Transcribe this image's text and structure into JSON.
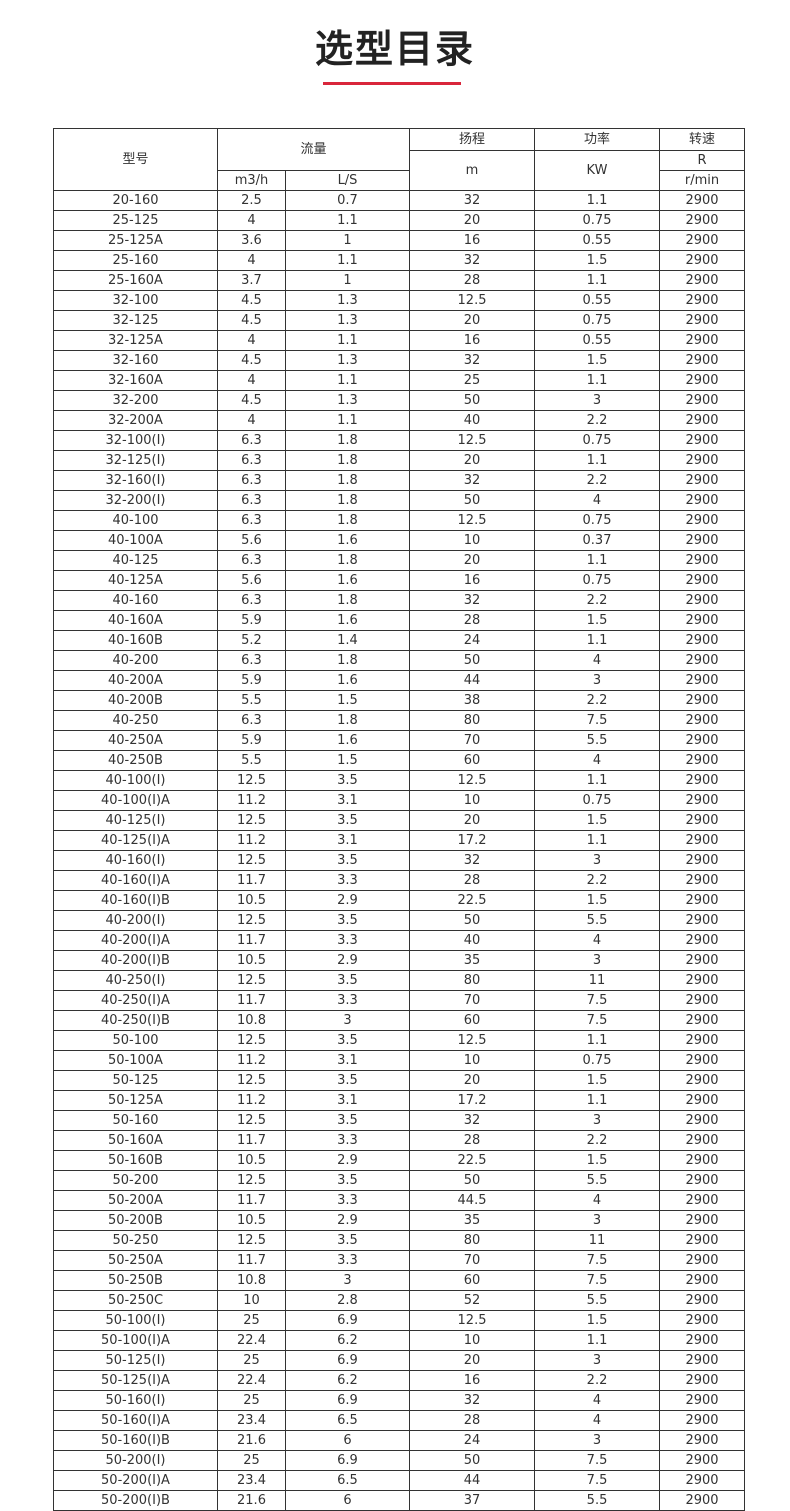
{
  "header": {
    "title": "选型目录"
  },
  "table": {
    "headers": {
      "model": "型号",
      "flow": "流量",
      "head": "扬程",
      "power": "功率",
      "speed": "转速",
      "head_unit": "m",
      "power_unit": "KW",
      "speed_unit_top": "R",
      "flow_unit_1": "m3/h",
      "flow_unit_2": "L/S",
      "speed_unit": "r/min"
    },
    "rows": [
      [
        "20-160",
        "2.5",
        "0.7",
        "32",
        "1.1",
        "2900"
      ],
      [
        "25-125",
        "4",
        "1.1",
        "20",
        "0.75",
        "2900"
      ],
      [
        "25-125A",
        "3.6",
        "1",
        "16",
        "0.55",
        "2900"
      ],
      [
        "25-160",
        "4",
        "1.1",
        "32",
        "1.5",
        "2900"
      ],
      [
        "25-160A",
        "3.7",
        "1",
        "28",
        "1.1",
        "2900"
      ],
      [
        "32-100",
        "4.5",
        "1.3",
        "12.5",
        "0.55",
        "2900"
      ],
      [
        "32-125",
        "4.5",
        "1.3",
        "20",
        "0.75",
        "2900"
      ],
      [
        "32-125A",
        "4",
        "1.1",
        "16",
        "0.55",
        "2900"
      ],
      [
        "32-160",
        "4.5",
        "1.3",
        "32",
        "1.5",
        "2900"
      ],
      [
        "32-160A",
        "4",
        "1.1",
        "25",
        "1.1",
        "2900"
      ],
      [
        "32-200",
        "4.5",
        "1.3",
        "50",
        "3",
        "2900"
      ],
      [
        "32-200A",
        "4",
        "1.1",
        "40",
        "2.2",
        "2900"
      ],
      [
        "32-100(I)",
        "6.3",
        "1.8",
        "12.5",
        "0.75",
        "2900"
      ],
      [
        "32-125(I)",
        "6.3",
        "1.8",
        "20",
        "1.1",
        "2900"
      ],
      [
        "32-160(I)",
        "6.3",
        "1.8",
        "32",
        "2.2",
        "2900"
      ],
      [
        "32-200(I)",
        "6.3",
        "1.8",
        "50",
        "4",
        "2900"
      ],
      [
        "40-100",
        "6.3",
        "1.8",
        "12.5",
        "0.75",
        "2900"
      ],
      [
        "40-100A",
        "5.6",
        "1.6",
        "10",
        "0.37",
        "2900"
      ],
      [
        "40-125",
        "6.3",
        "1.8",
        "20",
        "1.1",
        "2900"
      ],
      [
        "40-125A",
        "5.6",
        "1.6",
        "16",
        "0.75",
        "2900"
      ],
      [
        "40-160",
        "6.3",
        "1.8",
        "32",
        "2.2",
        "2900"
      ],
      [
        "40-160A",
        "5.9",
        "1.6",
        "28",
        "1.5",
        "2900"
      ],
      [
        "40-160B",
        "5.2",
        "1.4",
        "24",
        "1.1",
        "2900"
      ],
      [
        "40-200",
        "6.3",
        "1.8",
        "50",
        "4",
        "2900"
      ],
      [
        "40-200A",
        "5.9",
        "1.6",
        "44",
        "3",
        "2900"
      ],
      [
        "40-200B",
        "5.5",
        "1.5",
        "38",
        "2.2",
        "2900"
      ],
      [
        "40-250",
        "6.3",
        "1.8",
        "80",
        "7.5",
        "2900"
      ],
      [
        "40-250A",
        "5.9",
        "1.6",
        "70",
        "5.5",
        "2900"
      ],
      [
        "40-250B",
        "5.5",
        "1.5",
        "60",
        "4",
        "2900"
      ],
      [
        "40-100(I)",
        "12.5",
        "3.5",
        "12.5",
        "1.1",
        "2900"
      ],
      [
        "40-100(I)A",
        "11.2",
        "3.1",
        "10",
        "0.75",
        "2900"
      ],
      [
        "40-125(I)",
        "12.5",
        "3.5",
        "20",
        "1.5",
        "2900"
      ],
      [
        "40-125(I)A",
        "11.2",
        "3.1",
        "17.2",
        "1.1",
        "2900"
      ],
      [
        "40-160(I)",
        "12.5",
        "3.5",
        "32",
        "3",
        "2900"
      ],
      [
        "40-160(I)A",
        "11.7",
        "3.3",
        "28",
        "2.2",
        "2900"
      ],
      [
        "40-160(I)B",
        "10.5",
        "2.9",
        "22.5",
        "1.5",
        "2900"
      ],
      [
        "40-200(I)",
        "12.5",
        "3.5",
        "50",
        "5.5",
        "2900"
      ],
      [
        "40-200(I)A",
        "11.7",
        "3.3",
        "40",
        "4",
        "2900"
      ],
      [
        "40-200(I)B",
        "10.5",
        "2.9",
        "35",
        "3",
        "2900"
      ],
      [
        "40-250(I)",
        "12.5",
        "3.5",
        "80",
        "11",
        "2900"
      ],
      [
        "40-250(I)A",
        "11.7",
        "3.3",
        "70",
        "7.5",
        "2900"
      ],
      [
        "40-250(I)B",
        "10.8",
        "3",
        "60",
        "7.5",
        "2900"
      ],
      [
        "50-100",
        "12.5",
        "3.5",
        "12.5",
        "1.1",
        "2900"
      ],
      [
        "50-100A",
        "11.2",
        "3.1",
        "10",
        "0.75",
        "2900"
      ],
      [
        "50-125",
        "12.5",
        "3.5",
        "20",
        "1.5",
        "2900"
      ],
      [
        "50-125A",
        "11.2",
        "3.1",
        "17.2",
        "1.1",
        "2900"
      ],
      [
        "50-160",
        "12.5",
        "3.5",
        "32",
        "3",
        "2900"
      ],
      [
        "50-160A",
        "11.7",
        "3.3",
        "28",
        "2.2",
        "2900"
      ],
      [
        "50-160B",
        "10.5",
        "2.9",
        "22.5",
        "1.5",
        "2900"
      ],
      [
        "50-200",
        "12.5",
        "3.5",
        "50",
        "5.5",
        "2900"
      ],
      [
        "50-200A",
        "11.7",
        "3.3",
        "44.5",
        "4",
        "2900"
      ],
      [
        "50-200B",
        "10.5",
        "2.9",
        "35",
        "3",
        "2900"
      ],
      [
        "50-250",
        "12.5",
        "3.5",
        "80",
        "11",
        "2900"
      ],
      [
        "50-250A",
        "11.7",
        "3.3",
        "70",
        "7.5",
        "2900"
      ],
      [
        "50-250B",
        "10.8",
        "3",
        "60",
        "7.5",
        "2900"
      ],
      [
        "50-250C",
        "10",
        "2.8",
        "52",
        "5.5",
        "2900"
      ],
      [
        "50-100(I)",
        "25",
        "6.9",
        "12.5",
        "1.5",
        "2900"
      ],
      [
        "50-100(I)A",
        "22.4",
        "6.2",
        "10",
        "1.1",
        "2900"
      ],
      [
        "50-125(I)",
        "25",
        "6.9",
        "20",
        "3",
        "2900"
      ],
      [
        "50-125(I)A",
        "22.4",
        "6.2",
        "16",
        "2.2",
        "2900"
      ],
      [
        "50-160(I)",
        "25",
        "6.9",
        "32",
        "4",
        "2900"
      ],
      [
        "50-160(I)A",
        "23.4",
        "6.5",
        "28",
        "4",
        "2900"
      ],
      [
        "50-160(I)B",
        "21.6",
        "6",
        "24",
        "3",
        "2900"
      ],
      [
        "50-200(I)",
        "25",
        "6.9",
        "50",
        "7.5",
        "2900"
      ],
      [
        "50-200(I)A",
        "23.4",
        "6.5",
        "44",
        "7.5",
        "2900"
      ],
      [
        "50-200(I)B",
        "21.6",
        "6",
        "37",
        "5.5",
        "2900"
      ]
    ]
  }
}
